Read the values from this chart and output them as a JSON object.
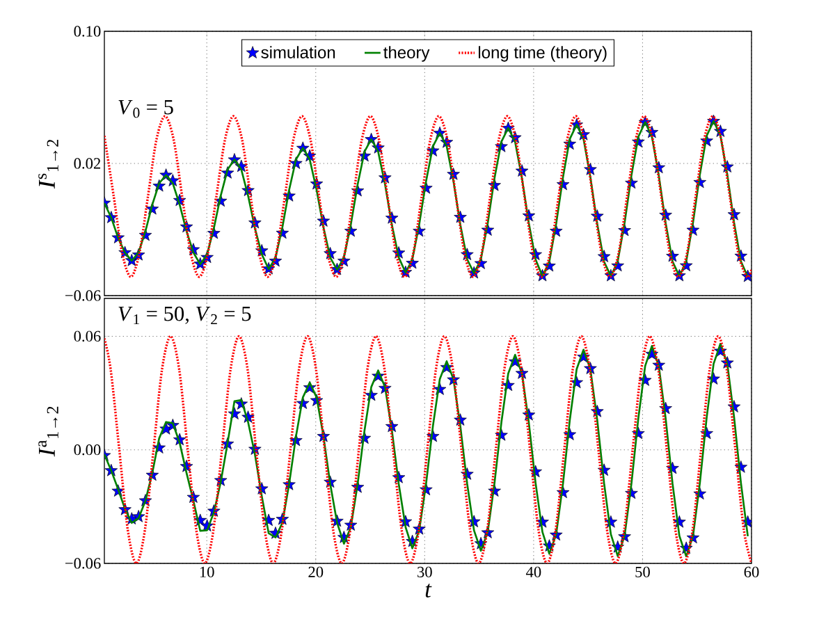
{
  "chart_data": [
    {
      "type": "line",
      "ylabel": "*I*$^{s}$$_{1→2}$",
      "annotations": [
        "*V*$_{0}$ = 5"
      ],
      "tick_labels": "y",
      "grid": true,
      "legend": "top",
      "xlim": [
        0.6,
        60
      ],
      "ylim": [
        -0.06,
        0.1
      ],
      "xticks": [
        10,
        20,
        30,
        40,
        50,
        60
      ],
      "yticks": [
        {
          "value": -0.06,
          "label": "−0.06"
        },
        {
          "value": 0.02,
          "label": "0.02"
        },
        {
          "value": 0.1,
          "label": "0.10"
        }
      ],
      "x": [
        0.6,
        1.23,
        1.86,
        2.49,
        3.11,
        3.74,
        4.37,
        5.0,
        5.63,
        6.26,
        6.88,
        7.51,
        8.14,
        8.77,
        9.4,
        10.03,
        10.65,
        11.28,
        11.91,
        12.54,
        13.17,
        13.79,
        14.42,
        15.05,
        15.68,
        16.31,
        16.94,
        17.56,
        18.19,
        18.82,
        19.45,
        20.08,
        20.71,
        21.33,
        21.96,
        22.59,
        23.22,
        23.85,
        24.48,
        25.1,
        25.73,
        26.36,
        26.99,
        27.62,
        28.25,
        28.87,
        29.5,
        30.13,
        30.76,
        31.39,
        32.02,
        32.64,
        33.27,
        33.9,
        34.53,
        35.16,
        35.79,
        36.41,
        37.04,
        37.67,
        38.3,
        38.93,
        39.56,
        40.18,
        40.81,
        41.44,
        42.07,
        42.7,
        43.32,
        43.95,
        44.58,
        45.21,
        45.84,
        46.47,
        47.09,
        47.72,
        48.35,
        48.98,
        49.61,
        50.24,
        50.86,
        51.49,
        52.12,
        52.75,
        53.38,
        54.01,
        54.63,
        55.26,
        55.89,
        56.52,
        57.15,
        57.78,
        58.4,
        59.03,
        59.66
      ],
      "series": [
        {
          "name": "simulation",
          "type": "scatter",
          "marker": "star",
          "color": "#0000ff",
          "values": [
            -0.004,
            -0.0128,
            -0.025,
            -0.034,
            -0.0388,
            -0.0354,
            -0.0235,
            -0.0076,
            0.0063,
            0.0129,
            0.0095,
            -0.0024,
            -0.0184,
            -0.0322,
            -0.0409,
            -0.0369,
            -0.0223,
            -0.0028,
            0.0142,
            0.0222,
            0.0182,
            0.0036,
            -0.016,
            -0.0329,
            -0.0438,
            -0.0391,
            -0.0222,
            0.0003,
            0.02,
            0.0292,
            0.0245,
            0.0076,
            -0.0149,
            -0.0346,
            -0.0442,
            -0.0391,
            -0.021,
            0.0034,
            0.0245,
            0.0345,
            0.0294,
            0.0113,
            -0.0131,
            -0.0342,
            -0.0459,
            -0.0404,
            -0.021,
            0.005,
            0.0276,
            0.0383,
            0.0328,
            0.0134,
            -0.0126,
            -0.0352,
            -0.0463,
            -0.0406,
            -0.0204,
            0.0067,
            0.0302,
            0.0413,
            0.0356,
            0.0154,
            -0.0117,
            -0.0352,
            -0.048,
            -0.0421,
            -0.021,
            0.0072,
            0.0317,
            0.0433,
            0.0374,
            0.0163,
            -0.0119,
            -0.0364,
            -0.048,
            -0.042,
            -0.0206,
            0.0081,
            0.033,
            0.0448,
            0.0388,
            0.0174,
            -0.0113,
            -0.0362,
            -0.048,
            -0.0419,
            -0.0204,
            0.0085,
            0.0336,
            0.0455,
            0.0394,
            0.0179,
            -0.011,
            -0.0361,
            -0.0484
          ]
        },
        {
          "name": "theory",
          "line_style": "solid",
          "color": "#008000",
          "values": [
            -0.004,
            -0.0128,
            -0.025,
            -0.034,
            -0.0389,
            -0.0339,
            -0.021,
            -0.0049,
            0.008,
            0.013,
            0.008,
            -0.0049,
            -0.021,
            -0.0339,
            -0.0411,
            -0.035,
            -0.0192,
            0.0005,
            0.0163,
            0.0224,
            0.0163,
            0.0005,
            -0.0192,
            -0.035,
            -0.044,
            -0.037,
            -0.0186,
            0.004,
            0.0224,
            0.0294,
            0.0224,
            0.004,
            -0.0186,
            -0.037,
            -0.0444,
            -0.0369,
            -0.0171,
            0.0074,
            0.0272,
            0.0347,
            0.0272,
            0.0074,
            -0.0171,
            -0.0369,
            -0.0461,
            -0.038,
            -0.0169,
            0.0093,
            0.0304,
            0.0385,
            0.0304,
            0.0093,
            -0.0169,
            -0.038,
            -0.0465,
            -0.0381,
            -0.0161,
            0.0111,
            0.0331,
            0.0415,
            0.0331,
            0.0111,
            -0.0161,
            -0.0381,
            -0.0482,
            -0.0395,
            -0.0165,
            0.0118,
            0.0348,
            0.0435,
            0.0348,
            0.0118,
            -0.0165,
            -0.0395,
            -0.0482,
            -0.0393,
            -0.016,
            0.0128,
            0.0361,
            0.045,
            0.0361,
            0.0128,
            -0.016,
            -0.0393,
            -0.0482,
            -0.0393,
            -0.0158,
            0.0133,
            0.0368,
            0.0457,
            0.0368,
            0.0133,
            -0.0158,
            -0.0393,
            -0.0486
          ]
        },
        {
          "name": "long time (theory)",
          "line_style": "dotted",
          "color": "#ff0000",
          "x": [
            0.6,
            1.46,
            2.24,
            3.03,
            3.81,
            4.6,
            5.38,
            6.17,
            6.96,
            7.74,
            8.53,
            9.31,
            10.1,
            10.88,
            11.67,
            12.45,
            13.24,
            14.02,
            14.81,
            15.59,
            16.38,
            17.17,
            17.95,
            18.74,
            19.52,
            20.31,
            21.09,
            21.88,
            22.66,
            23.45,
            24.23,
            25.02,
            25.81,
            26.59,
            27.38,
            28.16,
            28.95,
            29.73,
            30.52,
            31.3,
            32.09,
            32.87,
            33.66,
            34.44,
            35.23,
            36.02,
            36.8,
            37.59,
            38.37,
            39.16,
            39.94,
            40.73,
            41.51,
            42.3,
            43.08,
            43.87,
            44.65,
            45.44,
            46.23,
            47.01,
            47.8,
            48.58,
            49.37,
            50.15,
            50.94,
            51.72,
            52.51,
            53.29,
            54.08,
            54.87,
            55.65,
            56.44,
            57.22,
            58.01,
            58.79,
            59.58,
            60
          ],
          "values": [
            0.0367,
            0,
            -0.0344,
            -0.0486,
            -0.0344,
            0,
            0.0344,
            0.0486,
            0.0344,
            0,
            -0.0344,
            -0.0486,
            -0.0344,
            0,
            0.0344,
            0.0486,
            0.0344,
            0,
            -0.0344,
            -0.0486,
            -0.0344,
            0,
            0.0344,
            0.0486,
            0.0344,
            0,
            -0.0344,
            -0.0486,
            -0.0344,
            0,
            0.0344,
            0.0486,
            0.0344,
            0,
            -0.0344,
            -0.0486,
            -0.0344,
            0,
            0.0344,
            0.0486,
            0.0344,
            0,
            -0.0344,
            -0.0486,
            -0.0344,
            0,
            0.0344,
            0.0486,
            0.0344,
            0,
            -0.0344,
            -0.0486,
            -0.0344,
            0,
            0.0344,
            0.0486,
            0.0344,
            0,
            -0.0344,
            -0.0486,
            -0.0344,
            0,
            0.0344,
            0.0486,
            0.0344,
            0,
            -0.0344,
            -0.0486,
            -0.0344,
            0,
            0.0344,
            0.0486,
            0.0344,
            0,
            -0.0344,
            -0.0486,
            -0.0444
          ]
        }
      ]
    },
    {
      "type": "line",
      "xlabel": "t",
      "ylabel": "*I*$^{a}$$_{1→2}$",
      "annotations": [
        "*V*$_{1}$ = 50, *V*$_{2}$ = 5"
      ],
      "grid": true,
      "xlim": [
        0.6,
        60
      ],
      "ylim": [
        -0.06,
        0.08
      ],
      "xticks": [
        10,
        20,
        30,
        40,
        50,
        60
      ],
      "yticks": [
        {
          "value": -0.06,
          "label": "−0.06"
        },
        {
          "value": 0,
          "label": "0.00"
        },
        {
          "value": 0.06,
          "label": "0.06"
        }
      ],
      "x": [
        0.6,
        1.23,
        1.86,
        2.49,
        3.11,
        3.74,
        4.37,
        5.0,
        5.63,
        6.26,
        6.88,
        7.51,
        8.14,
        8.77,
        9.4,
        10.03,
        10.65,
        11.28,
        11.91,
        12.54,
        13.17,
        13.79,
        14.42,
        15.05,
        15.68,
        16.31,
        16.94,
        17.56,
        18.19,
        18.82,
        19.45,
        20.08,
        20.71,
        21.33,
        21.96,
        22.59,
        23.22,
        23.85,
        24.48,
        25.1,
        25.73,
        26.36,
        26.99,
        27.62,
        28.25,
        28.87,
        29.5,
        30.13,
        30.76,
        31.39,
        32.02,
        32.64,
        33.27,
        33.9,
        34.53,
        35.16,
        35.79,
        36.41,
        37.04,
        37.67,
        38.3,
        38.93,
        39.56,
        40.18,
        40.81,
        41.44,
        42.07,
        42.7,
        43.32,
        43.95,
        44.58,
        45.21,
        45.84,
        46.47,
        47.09,
        47.72,
        48.35,
        48.98,
        49.61,
        50.24,
        50.86,
        51.49,
        52.12,
        52.75,
        53.38,
        54.01,
        54.63,
        55.26,
        55.89,
        56.52,
        57.15,
        57.78,
        58.4,
        59.03,
        59.66
      ],
      "series": [
        {
          "type": "scatter",
          "marker": "star",
          "color": "#0000ff",
          "values": [
            -0.003,
            -0.011,
            -0.0218,
            -0.0316,
            -0.0365,
            -0.0353,
            -0.0269,
            -0.0134,
            0.001,
            0.011,
            0.0129,
            0.0053,
            -0.0088,
            -0.0251,
            -0.0373,
            -0.0402,
            -0.0324,
            -0.0162,
            0.0031,
            0.019,
            0.0242,
            0.0172,
            0.0003,
            -0.0206,
            -0.0373,
            -0.0441,
            -0.0367,
            -0.0184,
            0.0049,
            0.0245,
            0.0328,
            0.026,
            0.0071,
            -0.0171,
            -0.0377,
            -0.0463,
            -0.0398,
            -0.0198,
            0.0061,
            0.0288,
            0.0389,
            0.0325,
            0.0123,
            -0.0147,
            -0.038,
            -0.0484,
            -0.0419,
            -0.0211,
            0.0071,
            0.0319,
            0.0435,
            0.037,
            0.0157,
            -0.0129,
            -0.038,
            -0.0496,
            -0.0438,
            -0.0218,
            0.0077,
            0.034,
            0.0465,
            0.0404,
            0.0184,
            -0.0116,
            -0.0382,
            -0.0508,
            -0.045,
            -0.0226,
            0.008,
            0.0355,
            0.049,
            0.0429,
            0.0202,
            -0.0108,
            -0.0382,
            -0.0514,
            -0.0459,
            -0.023,
            0.0086,
            0.0367,
            0.0505,
            0.0447,
            0.0218,
            -0.0098,
            -0.0382,
            -0.052,
            -0.0465,
            -0.0233,
            0.0086,
            0.0374,
            0.0521,
            0.0459,
            0.0227,
            -0.0092,
            -0.0382
          ]
        },
        {
          "line_style": "solid",
          "color": "#008000",
          "values": [
            -0.0024,
            -0.011,
            -0.0208,
            -0.0312,
            -0.0386,
            -0.0361,
            -0.0269,
            -0.0122,
            0.0061,
            0.0147,
            0.0141,
            0.0037,
            -0.0122,
            -0.0269,
            -0.0428,
            -0.0425,
            -0.0331,
            -0.0171,
            0.0037,
            0.0257,
            0.0263,
            0.0147,
            -0.0024,
            -0.0245,
            -0.0441,
            -0.0463,
            -0.0385,
            -0.018,
            0.0072,
            0.0277,
            0.0355,
            0.0277,
            0.0072,
            -0.018,
            -0.0385,
            -0.0496,
            -0.0409,
            -0.018,
            0.0103,
            0.0332,
            0.0419,
            0.0332,
            0.0103,
            -0.018,
            -0.0409,
            -0.052,
            -0.0426,
            -0.0179,
            0.0127,
            0.0374,
            0.0468,
            0.0374,
            0.0127,
            -0.0179,
            -0.0426,
            -0.0533,
            -0.0434,
            -0.0175,
            0.0144,
            0.0403,
            0.0502,
            0.0403,
            0.0144,
            -0.0175,
            -0.0434,
            -0.0549,
            -0.0446,
            -0.0177,
            0.0157,
            0.0426,
            0.0529,
            0.0426,
            0.0157,
            -0.0177,
            -0.0446,
            -0.0561,
            -0.0455,
            -0.0178,
            0.0166,
            0.0443,
            0.0549,
            0.0443,
            0.0166,
            -0.0178,
            -0.0455,
            -0.0563,
            -0.0456,
            -0.0175,
            0.0173,
            0.0454,
            0.0561,
            0.0454,
            0.0173,
            -0.0175,
            -0.0456
          ]
        },
        {
          "line_style": "dotted",
          "color": "#ff0000",
          "x": [
            0.6,
            1.18,
            1.97,
            2.75,
            3.54,
            4.32,
            5.11,
            5.89,
            6.68,
            7.47,
            8.25,
            9.04,
            9.82,
            10.61,
            11.39,
            12.18,
            12.96,
            13.75,
            14.53,
            15.32,
            16.1,
            16.89,
            17.68,
            18.46,
            19.25,
            20.03,
            20.82,
            21.6,
            22.39,
            23.17,
            23.96,
            24.74,
            25.53,
            26.32,
            27.1,
            27.89,
            28.67,
            29.46,
            30.24,
            31.03,
            31.81,
            32.6,
            33.38,
            34.17,
            34.95,
            35.74,
            36.53,
            37.31,
            38.1,
            38.88,
            39.67,
            40.45,
            41.24,
            42.02,
            42.81,
            43.59,
            44.38,
            45.16,
            45.95,
            46.74,
            47.52,
            48.31,
            49.09,
            49.88,
            50.66,
            51.45,
            52.23,
            53.02,
            53.8,
            54.59,
            55.37,
            56.16,
            56.94,
            57.73,
            58.52,
            59.3,
            60
          ],
          "values": [
            0.0588,
            0.0424,
            0,
            -0.0424,
            -0.06,
            -0.0424,
            0,
            0.0424,
            0.06,
            0.0424,
            0,
            -0.0424,
            -0.06,
            -0.0424,
            0,
            0.0424,
            0.06,
            0.0424,
            0,
            -0.0424,
            -0.06,
            -0.0424,
            0,
            0.0424,
            0.06,
            0.0424,
            0,
            -0.0424,
            -0.06,
            -0.0424,
            0,
            0.0424,
            0.06,
            0.0424,
            0,
            -0.0424,
            -0.06,
            -0.0424,
            0,
            0.0424,
            0.06,
            0.0424,
            0,
            -0.0424,
            -0.06,
            -0.0424,
            0,
            0.0424,
            0.06,
            0.0424,
            0,
            -0.0424,
            -0.06,
            -0.0424,
            0,
            0.0424,
            0.06,
            0.0424,
            0,
            -0.0424,
            -0.06,
            -0.0424,
            0,
            0.0424,
            0.06,
            0.0424,
            0,
            -0.0424,
            -0.06,
            -0.0424,
            0,
            0.0424,
            0.06,
            0.0424,
            0,
            -0.0424,
            -0.0598
          ]
        }
      ]
    }
  ]
}
